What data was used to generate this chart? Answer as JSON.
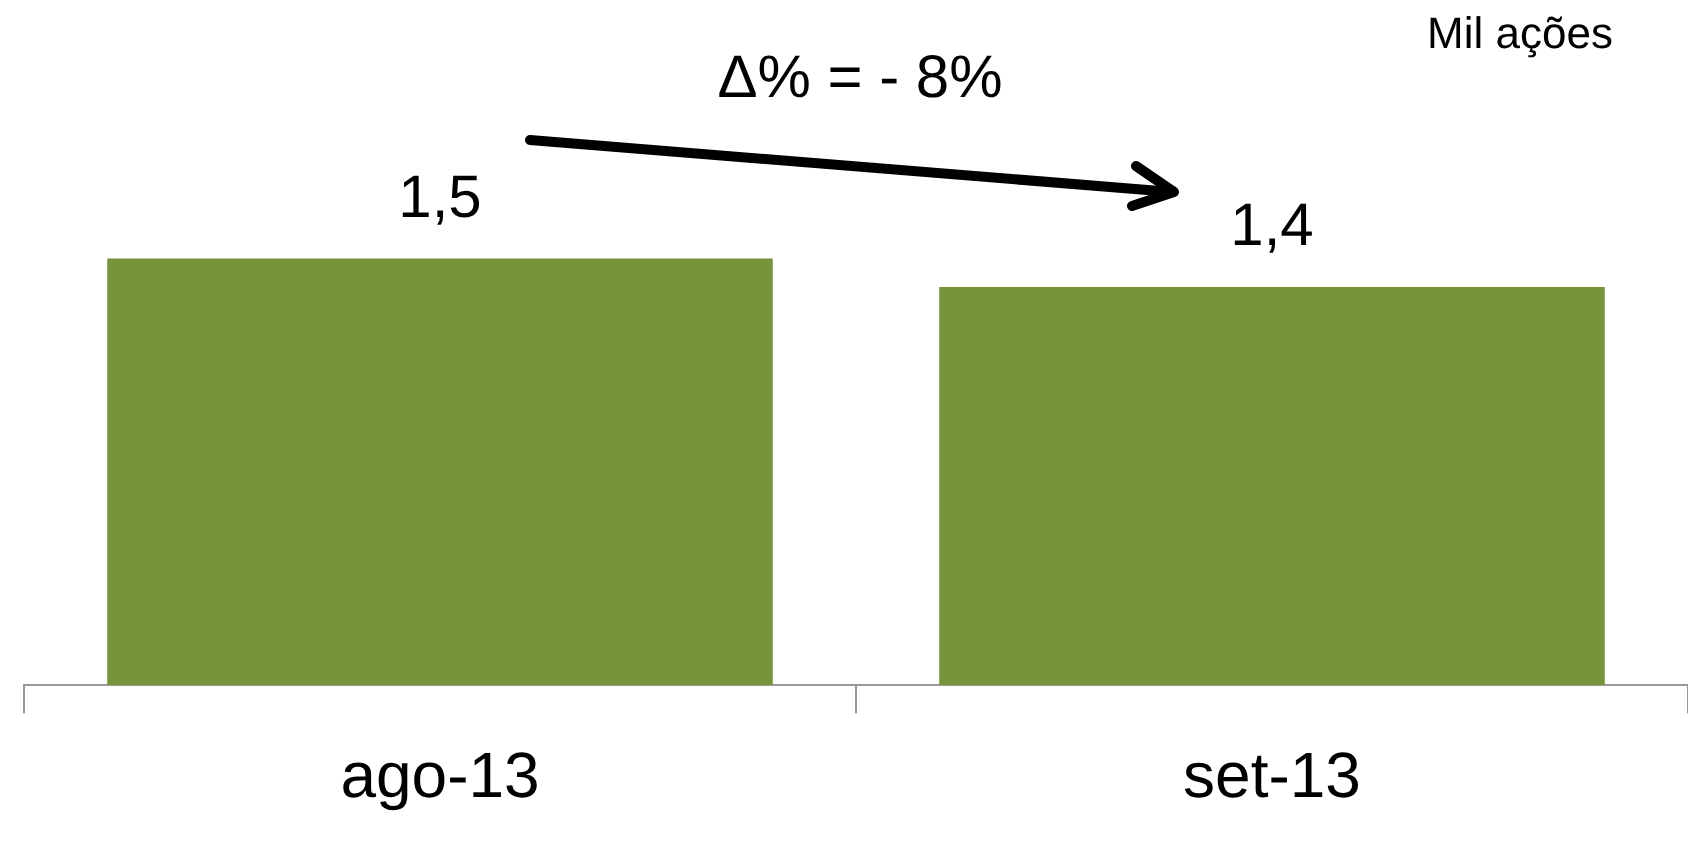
{
  "chart_data": {
    "type": "bar",
    "categories": [
      "ago-13",
      "set-13"
    ],
    "values": [
      1.5,
      1.4
    ],
    "value_labels": [
      "1,5",
      "1,4"
    ],
    "color": "#77933c",
    "tick_labels": "x",
    "legend": false,
    "annotations": [
      "Mil ações",
      "Δ% = - 8%"
    ]
  }
}
